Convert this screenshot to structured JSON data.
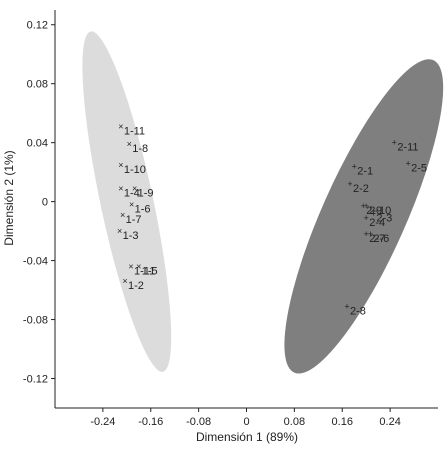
{
  "chart_data": {
    "type": "scatter",
    "xlabel": "Dimensión 1 (89%)",
    "ylabel": "Dimensión 2 (1%)",
    "xlim": [
      -0.32,
      0.32
    ],
    "ylim": [
      -0.14,
      0.13
    ],
    "xticks": [
      -0.24,
      -0.16,
      -0.08,
      0,
      0.08,
      0.16,
      0.24
    ],
    "yticks": [
      -0.12,
      -0.08,
      -0.04,
      0,
      0.04,
      0.08,
      0.12
    ],
    "xtick_labels": [
      "-0.24",
      "-0.16",
      "-0.08",
      "0",
      "0.08",
      "0.16",
      "0.24"
    ],
    "ytick_labels": [
      "-0.12",
      "-0.08",
      "-0.04",
      "0",
      "0.04",
      "0.08",
      "0.12"
    ],
    "grid": false,
    "groups": [
      {
        "marker": "×",
        "ellipse_color": "#dcdcdc",
        "ellipse": {
          "cx": -0.2,
          "cy": 0.0,
          "rx": 0.044,
          "ry": 0.118,
          "angle_deg": -12
        },
        "points": [
          {
            "label": "1-11",
            "x": -0.21,
            "y": 0.051
          },
          {
            "label": "1-8",
            "x": -0.196,
            "y": 0.039
          },
          {
            "label": "1-10",
            "x": -0.21,
            "y": 0.025
          },
          {
            "label": "1-4",
            "x": -0.21,
            "y": 0.009
          },
          {
            "label": "1-9",
            "x": -0.187,
            "y": 0.009
          },
          {
            "label": "1-6",
            "x": -0.192,
            "y": -0.002
          },
          {
            "label": "1-7",
            "x": -0.207,
            "y": -0.009
          },
          {
            "label": "1-3",
            "x": -0.212,
            "y": -0.02
          },
          {
            "label": "1-11",
            "x": -0.193,
            "y": -0.044
          },
          {
            "label": "1-5",
            "x": -0.18,
            "y": -0.044
          },
          {
            "label": "1-2",
            "x": -0.203,
            "y": -0.054
          }
        ]
      },
      {
        "marker": "+",
        "ellipse_color": "#7f7f7f",
        "ellipse": {
          "cx": 0.196,
          "cy": -0.01,
          "rx": 0.07,
          "ry": 0.116,
          "angle_deg": 24
        },
        "points": [
          {
            "label": "2-11",
            "x": 0.247,
            "y": 0.04
          },
          {
            "label": "2-5",
            "x": 0.27,
            "y": 0.026
          },
          {
            "label": "2-1",
            "x": 0.18,
            "y": 0.024
          },
          {
            "label": "2-2",
            "x": 0.173,
            "y": 0.012
          },
          {
            "label": "2-9",
            "x": 0.195,
            "y": -0.003
          },
          {
            "label": "2-10",
            "x": 0.2,
            "y": -0.003
          },
          {
            "label": "2-4",
            "x": 0.2,
            "y": -0.011
          },
          {
            "label": "2-3",
            "x": 0.212,
            "y": -0.008
          },
          {
            "label": "2-7",
            "x": 0.2,
            "y": -0.022
          },
          {
            "label": "2-6",
            "x": 0.207,
            "y": -0.022
          },
          {
            "label": "2-8",
            "x": 0.168,
            "y": -0.071
          }
        ]
      }
    ]
  }
}
